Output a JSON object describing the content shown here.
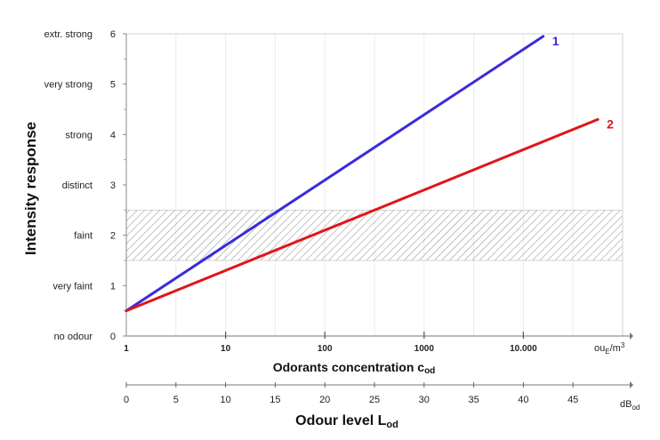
{
  "chart_data": {
    "type": "line",
    "ylabel": "Intensity response",
    "ylim": [
      0,
      6
    ],
    "yticks": [
      0,
      1,
      2,
      3,
      4,
      5,
      6
    ],
    "intensity_categories": [
      "no odour",
      "very faint",
      "faint",
      "distinct",
      "strong",
      "very strong",
      "extr. strong"
    ],
    "concentration_axis": {
      "title": "Odorants concentration c",
      "title_sub": "od",
      "tick_values": [
        1,
        10,
        100,
        1000,
        10000
      ],
      "tick_labels": [
        "1",
        "10",
        "100",
        "1000",
        "10.000"
      ],
      "unit": "ou",
      "unit_sub": "E",
      "unit_rest": "/m",
      "unit_sup": "3"
    },
    "level_axis": {
      "title": "Odour level L",
      "title_sub": "od",
      "xlim": [
        0,
        50
      ],
      "ticks": [
        0,
        5,
        10,
        15,
        20,
        25,
        30,
        35,
        40,
        45
      ],
      "unit": "dB",
      "unit_sub": "od"
    },
    "band": {
      "y_from": 1.5,
      "y_to": 2.5
    },
    "series": [
      {
        "label": "1",
        "color": "#3a2bdc",
        "x": [
          0,
          42
        ],
        "y": [
          0.5,
          5.95
        ]
      },
      {
        "label": "2",
        "color": "#e0161a",
        "x": [
          0,
          47.5
        ],
        "y": [
          0.5,
          4.3
        ]
      }
    ]
  }
}
